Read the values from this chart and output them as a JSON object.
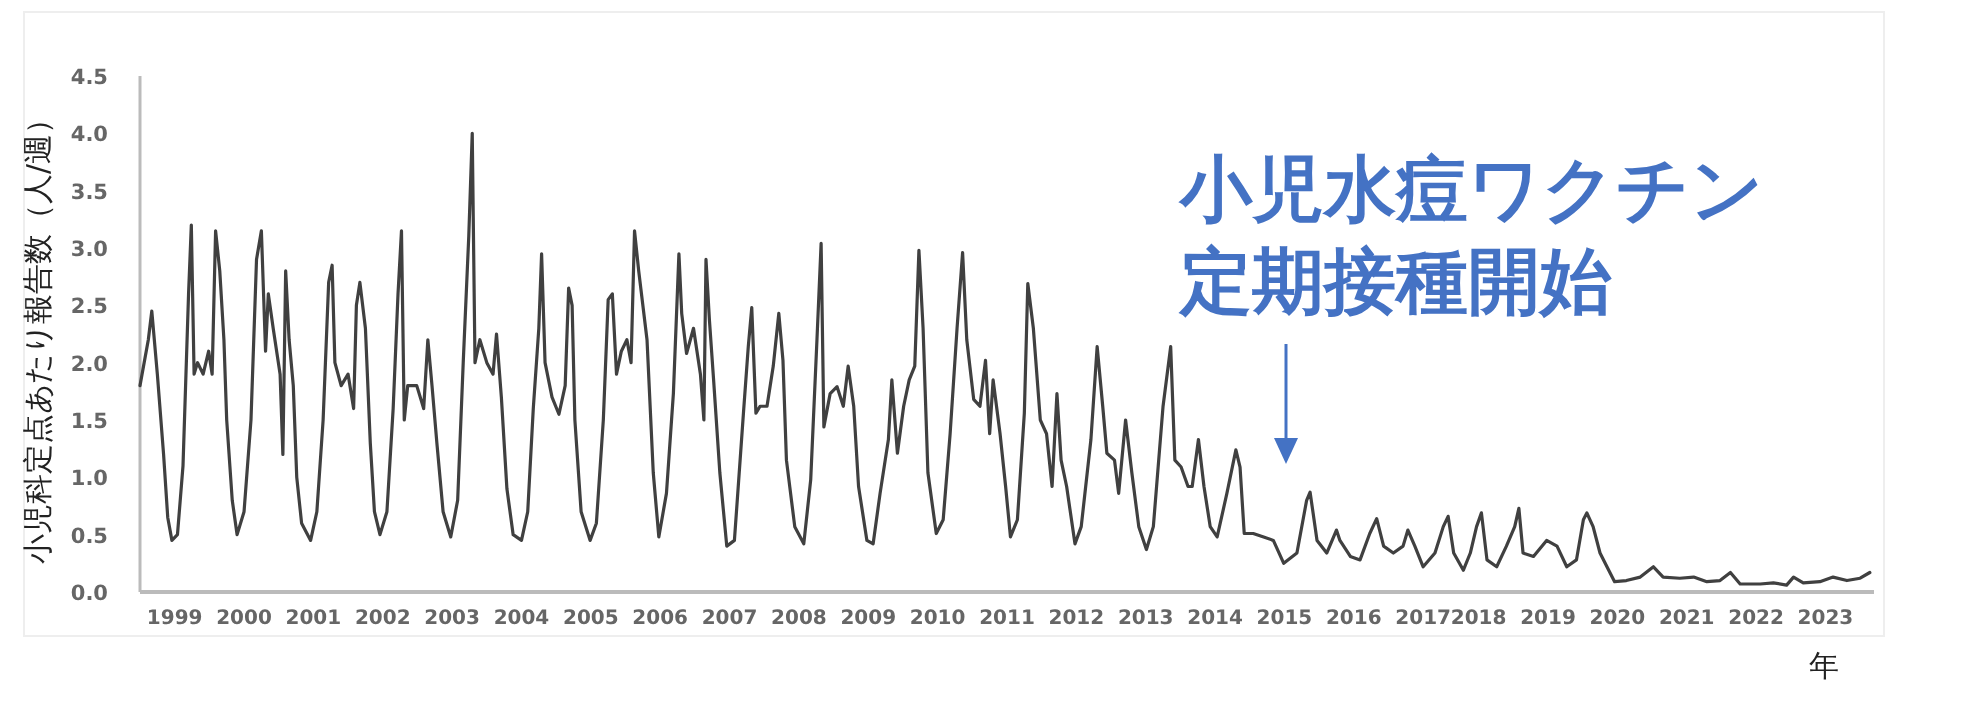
{
  "chart_data": {
    "type": "line",
    "xlabel": "年",
    "ylabel": "小児科定点あたり報告数（人/週）",
    "xlim": [
      1999,
      2024
    ],
    "ylim": [
      0,
      4.5
    ],
    "xticks": [
      {
        "value": 1999.5,
        "label": "1999"
      },
      {
        "value": 2000.5,
        "label": "2000"
      },
      {
        "value": 2001.5,
        "label": "2001"
      },
      {
        "value": 2002.5,
        "label": "2002"
      },
      {
        "value": 2003.5,
        "label": "2003"
      },
      {
        "value": 2004.5,
        "label": "2004"
      },
      {
        "value": 2005.5,
        "label": "2005"
      },
      {
        "value": 2006.5,
        "label": "2006"
      },
      {
        "value": 2007.5,
        "label": "2007"
      },
      {
        "value": 2008.5,
        "label": "2008"
      },
      {
        "value": 2009.5,
        "label": "2009"
      },
      {
        "value": 2010.5,
        "label": "2010"
      },
      {
        "value": 2011.5,
        "label": "2011"
      },
      {
        "value": 2012.5,
        "label": "2012"
      },
      {
        "value": 2013.5,
        "label": "2013"
      },
      {
        "value": 2014.5,
        "label": "2014"
      },
      {
        "value": 2015.5,
        "label": "2015"
      },
      {
        "value": 2016.5,
        "label": "2016"
      },
      {
        "value": 2017.5,
        "label": "2017"
      },
      {
        "value": 2018.3,
        "label": "2018"
      },
      {
        "value": 2019.3,
        "label": "2019"
      },
      {
        "value": 2020.3,
        "label": "2020"
      },
      {
        "value": 2021.3,
        "label": "2021"
      },
      {
        "value": 2022.3,
        "label": "2022"
      },
      {
        "value": 2023.3,
        "label": "2023"
      }
    ],
    "yticks": [
      {
        "value": 0,
        "label": "0.0"
      },
      {
        "value": 0.5,
        "label": "0.5"
      },
      {
        "value": 1,
        "label": "1.0"
      },
      {
        "value": 1.5,
        "label": "1.5"
      },
      {
        "value": 2,
        "label": "2.0"
      },
      {
        "value": 2.5,
        "label": "2.5"
      },
      {
        "value": 3,
        "label": "3.0"
      },
      {
        "value": 3.5,
        "label": "3.5"
      },
      {
        "value": 4,
        "label": "4.0"
      },
      {
        "value": 4.5,
        "label": "4.5"
      }
    ],
    "annotations": [
      "小児水痘ワクチン定期接種開始"
    ],
    "series": [
      {
        "color": "#404040",
        "x": [
          1999.0,
          1999.12,
          1999.17,
          1999.25,
          1999.34,
          1999.4,
          1999.46,
          1999.54,
          1999.62,
          1999.7,
          1999.74,
          1999.78,
          1999.83,
          1999.91,
          1999.99,
          2000.04,
          2000.09,
          2000.15,
          2000.21,
          2000.25,
          2000.33,
          2000.4,
          2000.5,
          2000.6,
          2000.68,
          2000.75,
          2000.81,
          2000.85,
          2000.92,
          2001.02,
          2001.06,
          2001.1,
          2001.15,
          2001.21,
          2001.26,
          2001.33,
          2001.46,
          2001.55,
          2001.64,
          2001.72,
          2001.77,
          2001.81,
          2001.9,
          2002.0,
          2002.08,
          2002.12,
          2002.17,
          2002.25,
          2002.32,
          2002.38,
          2002.46,
          2002.56,
          2002.65,
          2002.72,
          2002.77,
          2002.81,
          2002.86,
          2002.99,
          2003.09,
          2003.15,
          2003.21,
          2003.28,
          2003.37,
          2003.48,
          2003.58,
          2003.66,
          2003.74,
          2003.79,
          2003.83,
          2003.9,
          2004.0,
          2004.09,
          2004.14,
          2004.21,
          2004.29,
          2004.38,
          2004.5,
          2004.59,
          2004.67,
          2004.75,
          2004.79,
          2004.84,
          2004.94,
          2005.04,
          2005.13,
          2005.18,
          2005.23,
          2005.27,
          2005.36,
          2005.49,
          2005.58,
          2005.68,
          2005.75,
          2005.81,
          2005.87,
          2005.94,
          2006.02,
          2006.08,
          2006.13,
          2006.19,
          2006.31,
          2006.4,
          2006.48,
          2006.59,
          2006.69,
          2006.77,
          2006.81,
          2006.88,
          2006.98,
          2007.08,
          2007.13,
          2007.16,
          2007.21,
          2007.27,
          2007.36,
          2007.46,
          2007.57,
          2007.7,
          2007.77,
          2007.82,
          2007.88,
          2007.94,
          2008.04,
          2008.13,
          2008.21,
          2008.27,
          2008.32,
          2008.44,
          2008.57,
          2008.67,
          2008.76,
          2008.82,
          2008.86,
          2008.95,
          2009.05,
          2009.14,
          2009.21,
          2009.29,
          2009.36,
          2009.48,
          2009.57,
          2009.67,
          2009.79,
          2009.84,
          2009.92,
          2010.01,
          2010.09,
          2010.17,
          2010.23,
          2010.29,
          2010.36,
          2010.48,
          2010.58,
          2010.68,
          2010.78,
          2010.86,
          2010.92,
          2011.02,
          2011.11,
          2011.19,
          2011.25,
          2011.3,
          2011.4,
          2011.48,
          2011.55,
          2011.65,
          2011.75,
          2011.8,
          2011.88,
          2011.98,
          2012.07,
          2012.15,
          2012.22,
          2012.28,
          2012.36,
          2012.48,
          2012.57,
          2012.71,
          2012.8,
          2012.88,
          2012.94,
          2013.05,
          2013.11,
          2013.21,
          2013.3,
          2013.4,
          2013.51,
          2013.61,
          2013.75,
          2013.86,
          2013.92,
          2014.01,
          2014.11,
          2014.17,
          2014.26,
          2014.34,
          2014.43,
          2014.53,
          2014.67,
          2014.8,
          2014.86,
          2014.92,
          2015.05,
          2015.2,
          2015.34,
          2015.49,
          2015.68,
          2015.82,
          2015.87,
          2015.97,
          2016.11,
          2016.25,
          2016.3,
          2016.45,
          2016.59,
          2016.73,
          2016.83,
          2016.93,
          2017.07,
          2017.21,
          2017.28,
          2017.38,
          2017.5,
          2017.67,
          2017.79,
          2017.86,
          2017.94,
          2018.08,
          2018.18,
          2018.27,
          2018.34,
          2018.42,
          2018.56,
          2018.7,
          2018.82,
          2018.88,
          2018.94,
          2019.09,
          2019.28,
          2019.43,
          2019.57,
          2019.71,
          2019.81,
          2019.86,
          2019.95,
          2020.05,
          2020.15,
          2020.26,
          2020.43,
          2020.63,
          2020.82,
          2020.96,
          2021.2,
          2021.4,
          2021.59,
          2021.78,
          2021.93,
          2022.07,
          2022.36,
          2022.55,
          2022.74,
          2022.84,
          2022.98,
          2023.22,
          2023.41,
          2023.61,
          2023.8,
          2023.94
        ],
        "values": [
          1.8,
          2.2,
          2.45,
          1.9,
          1.2,
          0.65,
          0.45,
          0.5,
          1.1,
          2.6,
          3.2,
          1.9,
          2.0,
          1.9,
          2.1,
          1.9,
          3.15,
          2.8,
          2.2,
          1.5,
          0.8,
          0.5,
          0.7,
          1.5,
          2.9,
          3.15,
          2.1,
          2.6,
          2.3,
          1.9,
          1.2,
          2.8,
          2.2,
          1.8,
          1.0,
          0.6,
          0.45,
          0.7,
          1.5,
          2.7,
          2.85,
          2.0,
          1.8,
          1.9,
          1.6,
          2.5,
          2.7,
          2.3,
          1.3,
          0.7,
          0.5,
          0.7,
          1.6,
          2.6,
          3.15,
          1.5,
          1.8,
          1.8,
          1.6,
          2.2,
          1.8,
          1.3,
          0.7,
          0.48,
          0.8,
          2.0,
          3.1,
          4.0,
          2.0,
          2.2,
          2.0,
          1.9,
          2.25,
          1.7,
          0.9,
          0.5,
          0.45,
          0.7,
          1.6,
          2.3,
          2.95,
          2.0,
          1.7,
          1.55,
          1.8,
          2.65,
          2.5,
          1.5,
          0.7,
          0.45,
          0.6,
          1.5,
          2.55,
          2.6,
          1.9,
          2.1,
          2.2,
          2.0,
          3.15,
          2.8,
          2.2,
          1.04,
          0.48,
          0.86,
          1.73,
          2.95,
          2.43,
          2.08,
          2.3,
          1.9,
          1.5,
          2.9,
          2.37,
          1.85,
          1.04,
          0.4,
          0.45,
          1.56,
          2.14,
          2.48,
          1.56,
          1.62,
          1.62,
          1.97,
          2.43,
          2.02,
          1.15,
          0.57,
          0.42,
          0.98,
          2.2,
          3.04,
          1.44,
          1.73,
          1.79,
          1.62,
          1.97,
          1.62,
          0.92,
          0.45,
          0.42,
          0.86,
          1.33,
          1.85,
          1.21,
          1.62,
          1.85,
          1.97,
          2.98,
          2.3,
          1.04,
          0.51,
          0.63,
          1.38,
          2.3,
          2.96,
          2.2,
          1.68,
          1.62,
          2.02,
          1.38,
          1.85,
          1.38,
          0.92,
          0.48,
          0.63,
          1.56,
          2.69,
          2.3,
          1.5,
          1.38,
          0.92,
          1.73,
          1.15,
          0.92,
          0.42,
          0.57,
          1.33,
          2.14,
          1.62,
          1.21,
          1.15,
          0.86,
          1.5,
          1.04,
          0.57,
          0.37,
          0.57,
          1.62,
          2.14,
          1.15,
          1.09,
          0.92,
          0.92,
          1.33,
          0.92,
          0.57,
          0.48,
          0.86,
          1.24,
          1.09,
          0.51,
          0.51,
          0.48,
          0.45,
          0.25,
          0.34,
          0.8,
          0.87,
          0.45,
          0.34,
          0.54,
          0.45,
          0.31,
          0.28,
          0.51,
          0.64,
          0.4,
          0.34,
          0.4,
          0.54,
          0.4,
          0.22,
          0.34,
          0.57,
          0.66,
          0.34,
          0.19,
          0.34,
          0.57,
          0.69,
          0.28,
          0.22,
          0.4,
          0.57,
          0.73,
          0.34,
          0.31,
          0.45,
          0.4,
          0.22,
          0.28,
          0.63,
          0.69,
          0.57,
          0.34,
          0.22,
          0.09,
          0.1,
          0.13,
          0.22,
          0.13,
          0.12,
          0.13,
          0.09,
          0.1,
          0.17,
          0.07,
          0.07,
          0.08,
          0.06,
          0.13,
          0.08,
          0.09,
          0.13,
          0.1,
          0.12,
          0.17
        ]
      }
    ]
  }
}
